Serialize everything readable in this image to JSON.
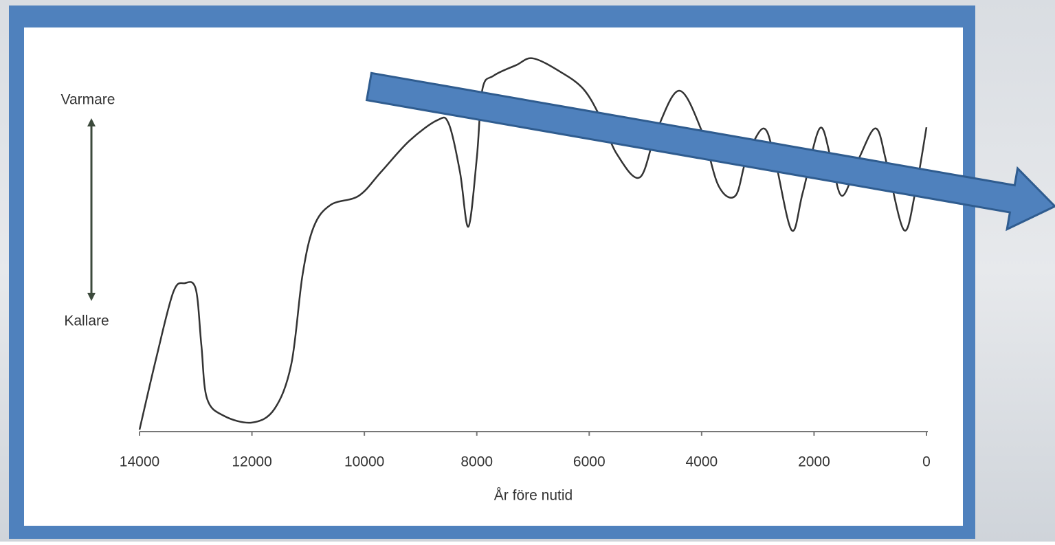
{
  "chart_data": {
    "type": "line",
    "annotations": {
      "warmer": "Varmare",
      "colder": "Kallare"
    },
    "xlabel": "År före nutid",
    "x": [
      14000,
      13700,
      13400,
      13200,
      13000,
      12900,
      12800,
      12500,
      12000,
      11600,
      11300,
      11100,
      10900,
      10600,
      10100,
      9700,
      9200,
      8700,
      8500,
      8300,
      8150,
      8000,
      7900,
      7700,
      7300,
      7000,
      6500,
      6100,
      5800,
      5500,
      5100,
      4800,
      4400,
      4000,
      3700,
      3400,
      3200,
      2900,
      2700,
      2400,
      2200,
      1900,
      1700,
      1500,
      1200,
      900,
      700,
      400,
      200,
      0
    ],
    "values": [
      0.5,
      19.7,
      37,
      39.4,
      37.9,
      23,
      8.8,
      4.2,
      2.4,
      6,
      17.9,
      41.6,
      54.4,
      60.2,
      62.6,
      69,
      77.2,
      82.7,
      81.8,
      69,
      54.4,
      72.6,
      90.9,
      94.5,
      97.3,
      99.1,
      95.4,
      90.9,
      83.4,
      73.5,
      67.5,
      79.9,
      90.5,
      79.9,
      65.3,
      62.6,
      72.6,
      80.5,
      72.6,
      53.5,
      63.5,
      80.5,
      72.6,
      62.6,
      72.6,
      80.5,
      70.8,
      53.5,
      63.5,
      80.8
    ],
    "color": "#333333",
    "xlim": [
      14000,
      0
    ],
    "xticks": [
      14000,
      12000,
      10000,
      8000,
      6000,
      4000,
      2000,
      0
    ],
    "ylim": [
      0,
      100
    ]
  }
}
